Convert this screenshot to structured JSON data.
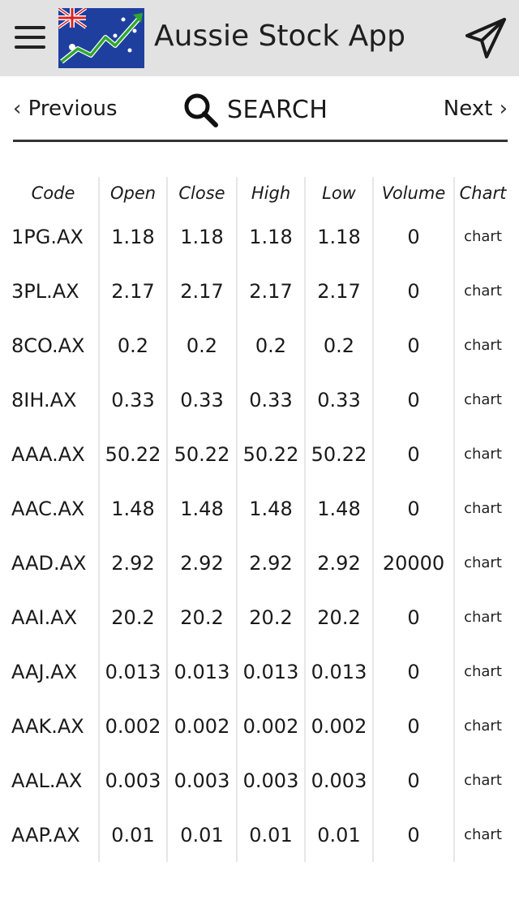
{
  "header": {
    "app_title": "Aussie Stock App",
    "menu_icon": "hamburger-menu-icon",
    "logo_icon": "australian-flag-stock-chart-logo",
    "send_icon": "paper-plane-icon"
  },
  "nav": {
    "previous_label": "Previous",
    "search_label": "SEARCH",
    "next_label": "Next"
  },
  "table": {
    "columns": [
      "Code",
      "Open",
      "Close",
      "High",
      "Low",
      "Volume",
      "Chart"
    ],
    "rows": [
      {
        "code": "1PG.AX",
        "open": "1.18",
        "close": "1.18",
        "high": "1.18",
        "low": "1.18",
        "volume": "0",
        "chart": "chart"
      },
      {
        "code": "3PL.AX",
        "open": "2.17",
        "close": "2.17",
        "high": "2.17",
        "low": "2.17",
        "volume": "0",
        "chart": "chart"
      },
      {
        "code": "8CO.AX",
        "open": "0.2",
        "close": "0.2",
        "high": "0.2",
        "low": "0.2",
        "volume": "0",
        "chart": "chart"
      },
      {
        "code": "8IH.AX",
        "open": "0.33",
        "close": "0.33",
        "high": "0.33",
        "low": "0.33",
        "volume": "0",
        "chart": "chart"
      },
      {
        "code": "AAA.AX",
        "open": "50.22",
        "close": "50.22",
        "high": "50.22",
        "low": "50.22",
        "volume": "0",
        "chart": "chart"
      },
      {
        "code": "AAC.AX",
        "open": "1.48",
        "close": "1.48",
        "high": "1.48",
        "low": "1.48",
        "volume": "0",
        "chart": "chart"
      },
      {
        "code": "AAD.AX",
        "open": "2.92",
        "close": "2.92",
        "high": "2.92",
        "low": "2.92",
        "volume": "20000",
        "chart": "chart"
      },
      {
        "code": "AAI.AX",
        "open": "20.2",
        "close": "20.2",
        "high": "20.2",
        "low": "20.2",
        "volume": "0",
        "chart": "chart"
      },
      {
        "code": "AAJ.AX",
        "open": "0.013",
        "close": "0.013",
        "high": "0.013",
        "low": "0.013",
        "volume": "0",
        "chart": "chart"
      },
      {
        "code": "AAK.AX",
        "open": "0.002",
        "close": "0.002",
        "high": "0.002",
        "low": "0.002",
        "volume": "0",
        "chart": "chart"
      },
      {
        "code": "AAL.AX",
        "open": "0.003",
        "close": "0.003",
        "high": "0.003",
        "low": "0.003",
        "volume": "0",
        "chart": "chart"
      },
      {
        "code": "AAP.AX",
        "open": "0.01",
        "close": "0.01",
        "high": "0.01",
        "low": "0.01",
        "volume": "0",
        "chart": "chart"
      }
    ]
  }
}
